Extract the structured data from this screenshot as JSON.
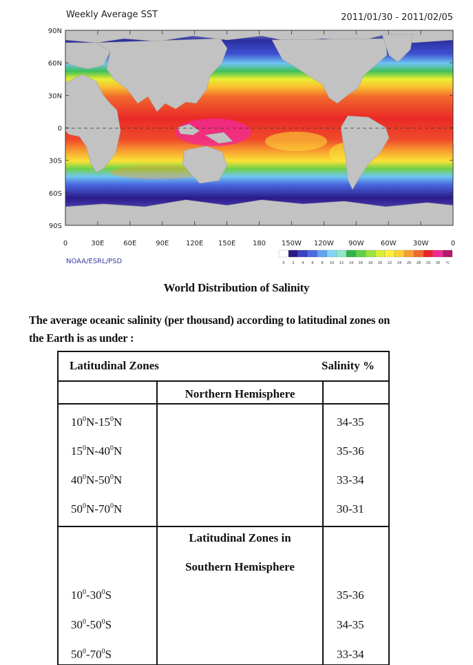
{
  "map": {
    "title": "Weekly Average SST",
    "date_range": "2011/01/30 - 2011/02/05",
    "credit": "NOAA/ESRL/PSD",
    "lat_labels": [
      "90N",
      "60N",
      "30N",
      "0",
      "30S",
      "60S",
      "90S"
    ],
    "lon_labels": [
      "0",
      "30E",
      "60E",
      "90E",
      "120E",
      "150E",
      "180",
      "150W",
      "120W",
      "90W",
      "60W",
      "30W",
      "0"
    ],
    "colorbar_values": [
      "0",
      "2",
      "4",
      "6",
      "8",
      "10",
      "12",
      "14",
      "16",
      "18",
      "20",
      "22",
      "24",
      "26",
      "28",
      "29",
      "30",
      "°C"
    ],
    "colorbar_colors": [
      "#ffffff",
      "#2b1a8a",
      "#3a3fc4",
      "#4a6ae0",
      "#5fa3f0",
      "#7fd7f5",
      "#8fe8c8",
      "#30b34a",
      "#5fd048",
      "#9be33c",
      "#d9ee34",
      "#fff038",
      "#fcd232",
      "#f8a030",
      "#f26a2e",
      "#e8232a",
      "#f2289a",
      "#b2186a"
    ],
    "land_color": "#c2c2c2"
  },
  "caption": "World Distribution of Salinity",
  "intro": {
    "line1": "The average oceanic salinity (per thousand) according to latitudinal zones on",
    "line2": "the Earth is as under :"
  },
  "table": {
    "col1_header": "Latitudinal Zones",
    "col3_header": "Salinity %",
    "northern_heading": "Northern Hemisphere",
    "northern_rows": [
      {
        "a": "10",
        "b": "N-15",
        "c": "N",
        "value": "34-35"
      },
      {
        "a": "15",
        "b": "N-40",
        "c": "N",
        "value": "35-36"
      },
      {
        "a": "40",
        "b": "N-50",
        "c": "N",
        "value": "33-34"
      },
      {
        "a": "50",
        "b": "N-70",
        "c": "N",
        "value": "30-31"
      }
    ],
    "southern_heading_1": "Latitudinal Zones in",
    "southern_heading_2": "Southern Hemisphere",
    "southern_rows": [
      {
        "a": "10",
        "b": "-30",
        "c": "S",
        "value": "35-36"
      },
      {
        "a": "30",
        "b": "-50",
        "c": "S",
        "value": "34-35"
      },
      {
        "a": "50",
        "b": "-70",
        "c": "S",
        "value": "33-34"
      }
    ],
    "degree_mark": "0"
  }
}
